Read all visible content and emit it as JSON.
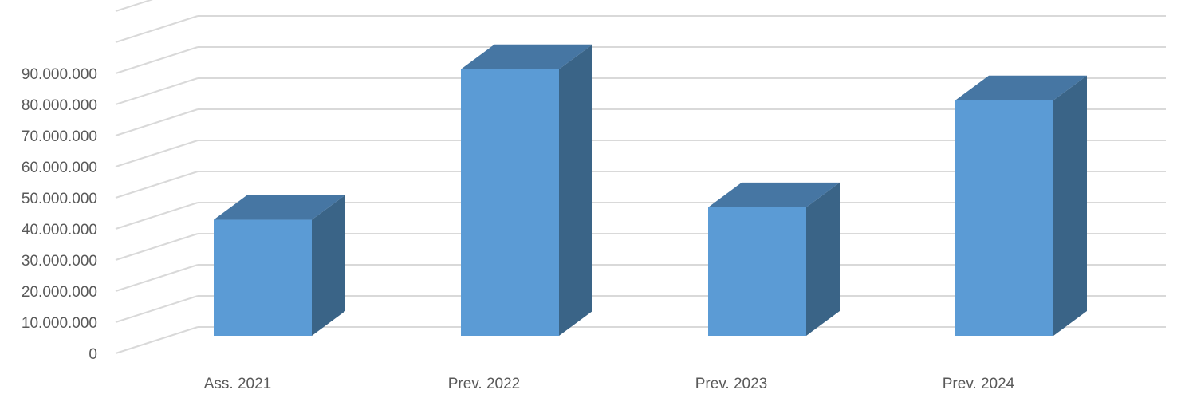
{
  "chart_data": {
    "type": "bar",
    "style": "3d-column",
    "categories": [
      "Ass. 2021",
      "Prev. 2022",
      "Prev. 2023",
      "Prev. 2024"
    ],
    "values": [
      37300000,
      85700000,
      41300000,
      75700000
    ],
    "y_ticks": [
      "0",
      "10.000.000",
      "20.000.000",
      "30.000.000",
      "40.000.000",
      "50.000.000",
      "60.000.000",
      "70.000.000",
      "80.000.000",
      "90.000.000"
    ],
    "ylim": [
      0,
      110000000
    ],
    "grid": true,
    "legend": "none",
    "title": "",
    "xlabel": "",
    "ylabel": "",
    "colors": {
      "bar_front": "#5B9BD5",
      "bar_top": "#4676A3",
      "bar_side": "#3A6487",
      "grid": "#D9D9D9",
      "axis_text": "#595959"
    }
  }
}
